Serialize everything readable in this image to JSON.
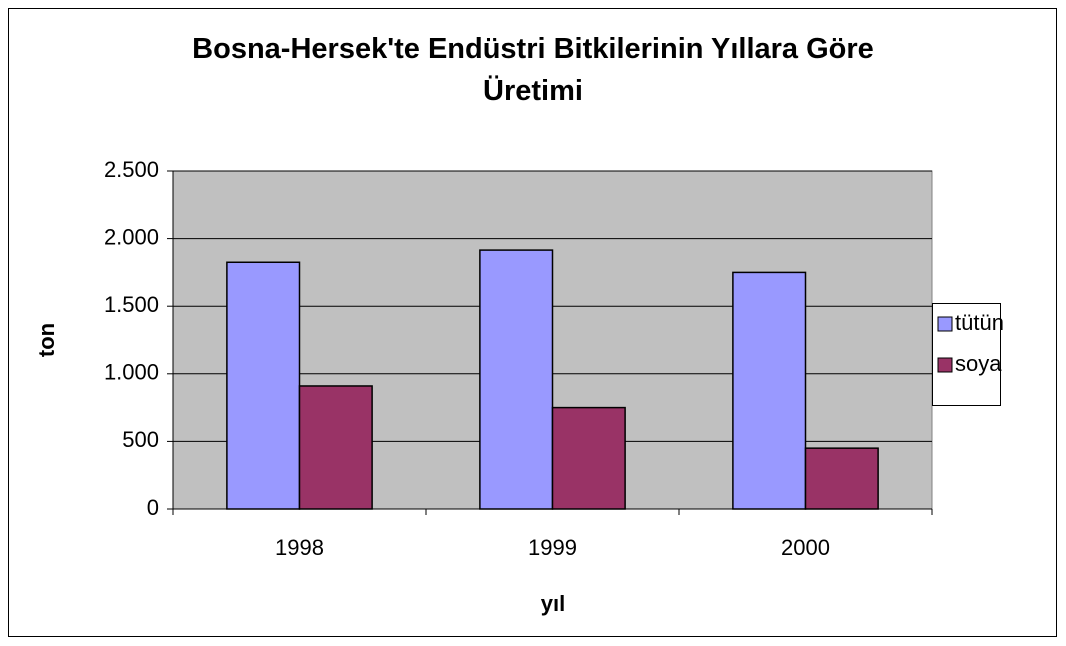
{
  "chart_data": {
    "type": "bar",
    "title": "Bosna-Hersek'te Endüstri Bitkilerinin Yıllara Göre Üretimi",
    "x_label": "yıl",
    "y_label": "ton",
    "categories": [
      "1998",
      "1999",
      "2000"
    ],
    "series": [
      {
        "name": "tütün",
        "color": "#9999ff",
        "values": [
          1825,
          1915,
          1750
        ]
      },
      {
        "name": "soya",
        "color": "#993366",
        "values": [
          910,
          750,
          450
        ]
      }
    ],
    "ylim": [
      0,
      2500
    ],
    "yticks": [
      0,
      500,
      {
        "value": 1000,
        "label": "1.000"
      },
      {
        "value": 1500,
        "label": "1.500"
      },
      {
        "value": 2000,
        "label": "2.000"
      },
      {
        "value": 2500,
        "label": "2.500"
      }
    ],
    "grid": true,
    "legend": "right"
  }
}
